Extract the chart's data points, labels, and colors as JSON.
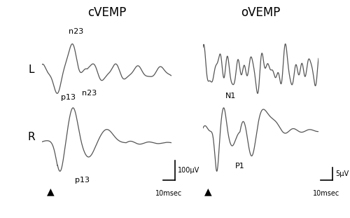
{
  "title_cvemp": "cVEMP",
  "title_ovemp": "oVEMP",
  "label_L": "L",
  "label_R": "R",
  "label_n23_cL": "n23",
  "label_p13_cL": "p13",
  "label_n23_cR": "n23",
  "label_p13_cR": "p13",
  "label_N1": "N1",
  "label_P1": "P1",
  "scalebar_cvemp": "100μV",
  "scalebar_ovemp": "5μV",
  "timescale": "10msec",
  "line_color": "#555555",
  "bg_color": "#ffffff",
  "text_color": "#000000",
  "fig_width": 5.0,
  "fig_height": 3.11
}
